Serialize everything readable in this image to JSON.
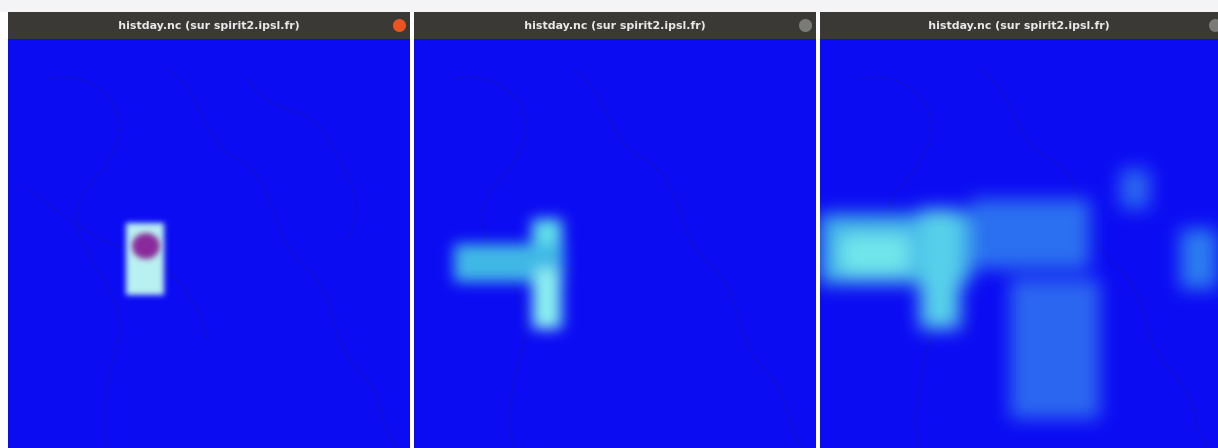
{
  "windows": [
    {
      "title": "histday.nc (sur spirit2.ipsl.fr)"
    },
    {
      "title": "histday.nc (sur spirit2.ipsl.fr)"
    },
    {
      "title": "histday.nc (sur spirit2.ipsl.fr)"
    }
  ]
}
